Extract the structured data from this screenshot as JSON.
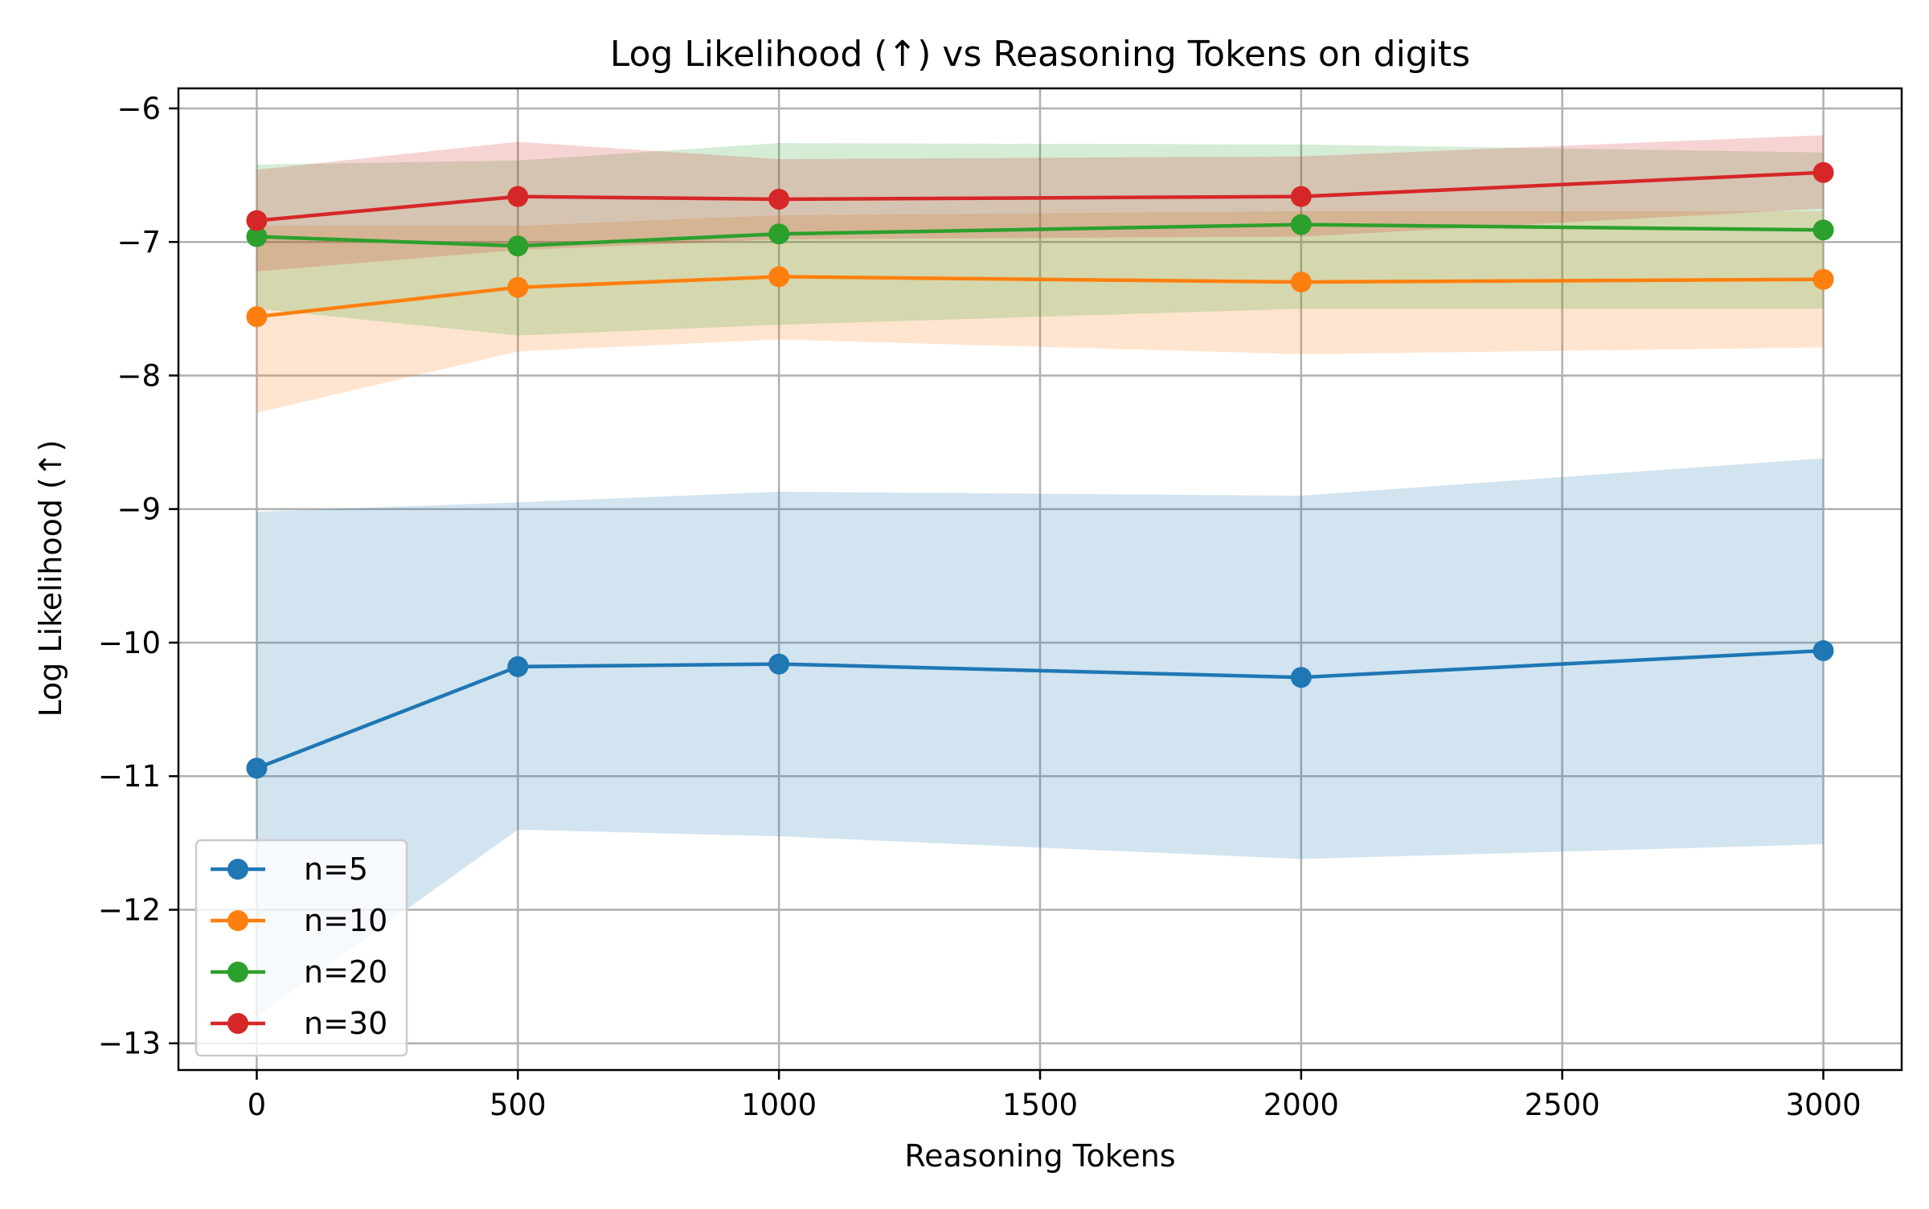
{
  "chart_data": {
    "type": "line",
    "title": "Log Likelihood (↑) vs Reasoning Tokens on digits",
    "xlabel": "Reasoning Tokens",
    "ylabel": "Log Likelihood (↑)",
    "x": [
      0,
      500,
      1000,
      2000,
      3000
    ],
    "xlim": [
      -150,
      3150
    ],
    "ylim": [
      -13.2,
      -5.85
    ],
    "xticks": [
      0,
      500,
      1000,
      1500,
      2000,
      2500,
      3000
    ],
    "xtick_labels": [
      "0",
      "500",
      "1000",
      "1500",
      "2000",
      "2500",
      "3000"
    ],
    "yticks": [
      -13,
      -12,
      -11,
      -10,
      -9,
      -8,
      -7,
      -6
    ],
    "ytick_labels": [
      "−13",
      "−12",
      "−11",
      "−10",
      "−9",
      "−8",
      "−7",
      "−6"
    ],
    "grid": true,
    "legend_position": "lower-left",
    "series": [
      {
        "name": "n=5",
        "color": "#1f77b4",
        "values": [
          -10.94,
          -10.18,
          -10.16,
          -10.26,
          -10.06
        ],
        "band_upper": [
          -9.02,
          -8.95,
          -8.87,
          -8.9,
          -8.62
        ],
        "band_lower": [
          -12.8,
          -11.4,
          -11.45,
          -11.62,
          -11.51
        ]
      },
      {
        "name": "n=10",
        "color": "#ff7f0e",
        "values": [
          -7.56,
          -7.34,
          -7.26,
          -7.3,
          -7.28
        ],
        "band_upper": [
          -6.88,
          -6.88,
          -6.8,
          -6.77,
          -6.77
        ],
        "band_lower": [
          -8.28,
          -7.82,
          -7.73,
          -7.84,
          -7.79
        ]
      },
      {
        "name": "n=20",
        "color": "#2ca02c",
        "values": [
          -6.96,
          -7.03,
          -6.94,
          -6.87,
          -6.91
        ],
        "band_upper": [
          -6.42,
          -6.39,
          -6.26,
          -6.27,
          -6.33
        ],
        "band_lower": [
          -7.5,
          -7.7,
          -7.62,
          -7.5,
          -7.5
        ]
      },
      {
        "name": "n=30",
        "color": "#d62728",
        "values": [
          -6.84,
          -6.66,
          -6.68,
          -6.66,
          -6.48
        ],
        "band_upper": [
          -6.46,
          -6.25,
          -6.38,
          -6.36,
          -6.2
        ],
        "band_lower": [
          -7.22,
          -7.06,
          -6.98,
          -6.96,
          -6.75
        ]
      }
    ]
  }
}
